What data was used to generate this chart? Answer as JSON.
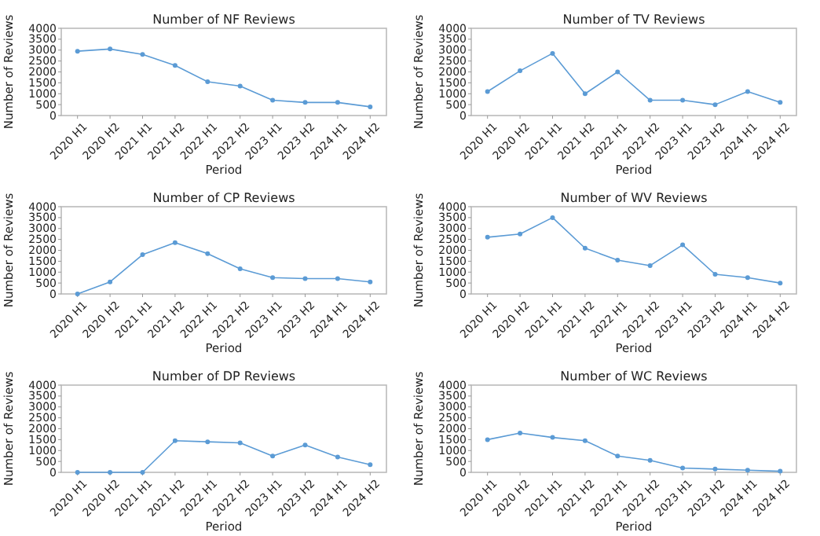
{
  "chart_data": [
    {
      "type": "line",
      "title": "Number of NF Reviews",
      "xlabel": "Period",
      "ylabel": "Number of Reviews",
      "categories": [
        "2020 H1",
        "2020 H2",
        "2021 H1",
        "2021 H2",
        "2022 H1",
        "2022 H2",
        "2023 H1",
        "2023 H2",
        "2024 H1",
        "2024 H2"
      ],
      "series": [
        {
          "color": "#5b9bd5",
          "values": [
            2950,
            3050,
            2800,
            2300,
            1550,
            1350,
            700,
            600,
            600,
            400
          ]
        }
      ],
      "ylim": [
        0,
        4000
      ],
      "yticks": [
        0,
        500,
        1000,
        1500,
        2000,
        2500,
        3000,
        3500,
        4000
      ],
      "marker": "circle",
      "grid": false
    },
    {
      "type": "line",
      "title": "Number of TV Reviews",
      "xlabel": "Period",
      "ylabel": "Number of Reviews",
      "categories": [
        "2020 H1",
        "2020 H2",
        "2021 H1",
        "2021 H2",
        "2022 H1",
        "2022 H2",
        "2023 H1",
        "2023 H2",
        "2024 H1",
        "2024 H2"
      ],
      "series": [
        {
          "color": "#5b9bd5",
          "values": [
            1100,
            2050,
            2850,
            1000,
            2000,
            700,
            700,
            500,
            1100,
            600
          ]
        }
      ],
      "ylim": [
        0,
        4000
      ],
      "yticks": [
        0,
        500,
        1000,
        1500,
        2000,
        2500,
        3000,
        3500,
        4000
      ],
      "marker": "circle",
      "grid": false
    },
    {
      "type": "line",
      "title": "Number of CP Reviews",
      "xlabel": "Period",
      "ylabel": "Number of Reviews",
      "categories": [
        "2020 H1",
        "2020 H2",
        "2021 H1",
        "2021 H2",
        "2022 H1",
        "2022 H2",
        "2023 H1",
        "2023 H2",
        "2024 H1",
        "2024 H2"
      ],
      "series": [
        {
          "color": "#5b9bd5",
          "values": [
            0,
            550,
            1800,
            2350,
            1850,
            1150,
            750,
            700,
            700,
            550
          ]
        }
      ],
      "ylim": [
        0,
        4000
      ],
      "yticks": [
        0,
        500,
        1000,
        1500,
        2000,
        2500,
        3000,
        3500,
        4000
      ],
      "marker": "circle",
      "grid": false
    },
    {
      "type": "line",
      "title": "Number of WV Reviews",
      "xlabel": "Period",
      "ylabel": "Number of Reviews",
      "categories": [
        "2020 H1",
        "2020 H2",
        "2021 H1",
        "2021 H2",
        "2022 H1",
        "2022 H2",
        "2023 H1",
        "2023 H2",
        "2024 H1",
        "2024 H2"
      ],
      "series": [
        {
          "color": "#5b9bd5",
          "values": [
            2600,
            2750,
            3500,
            2100,
            1550,
            1300,
            2250,
            900,
            750,
            500
          ]
        }
      ],
      "ylim": [
        0,
        4000
      ],
      "yticks": [
        0,
        500,
        1000,
        1500,
        2000,
        2500,
        3000,
        3500,
        4000
      ],
      "marker": "circle",
      "grid": false
    },
    {
      "type": "line",
      "title": "Number of DP Reviews",
      "xlabel": "Period",
      "ylabel": "Number of Reviews",
      "categories": [
        "2020 H1",
        "2020 H2",
        "2021 H1",
        "2021 H2",
        "2022 H1",
        "2022 H2",
        "2023 H1",
        "2023 H2",
        "2024 H1",
        "2024 H2"
      ],
      "series": [
        {
          "color": "#5b9bd5",
          "values": [
            0,
            0,
            0,
            1450,
            1400,
            1350,
            750,
            1250,
            700,
            350
          ]
        }
      ],
      "ylim": [
        0,
        4000
      ],
      "yticks": [
        0,
        500,
        1000,
        1500,
        2000,
        2500,
        3000,
        3500,
        4000
      ],
      "marker": "circle",
      "grid": false
    },
    {
      "type": "line",
      "title": "Number of WC Reviews",
      "xlabel": "Period",
      "ylabel": "Number of Reviews",
      "categories": [
        "2020 H1",
        "2020 H2",
        "2021 H1",
        "2021 H2",
        "2022 H1",
        "2022 H2",
        "2023 H1",
        "2023 H2",
        "2024 H1",
        "2024 H2"
      ],
      "series": [
        {
          "color": "#5b9bd5",
          "values": [
            1500,
            1800,
            1600,
            1450,
            750,
            550,
            200,
            150,
            100,
            50
          ]
        }
      ],
      "ylim": [
        0,
        4000
      ],
      "yticks": [
        0,
        500,
        1000,
        1500,
        2000,
        2500,
        3000,
        3500,
        4000
      ],
      "marker": "circle",
      "grid": false
    }
  ]
}
